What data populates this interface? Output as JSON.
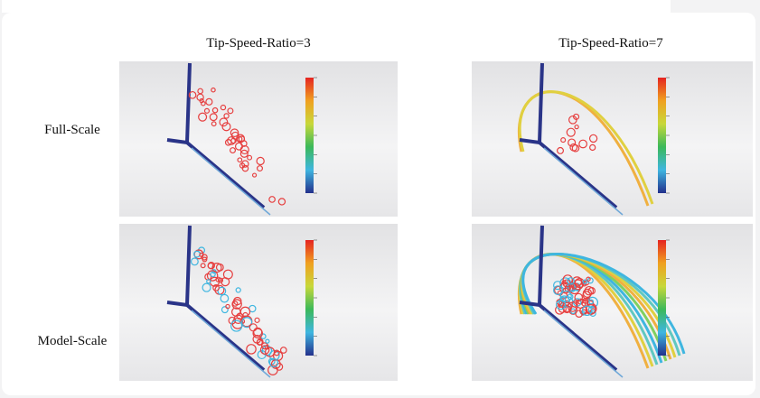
{
  "figure": {
    "columns": [
      "Tip-Speed-Ratio=3",
      "Tip-Speed-Ratio=7"
    ],
    "rows": [
      "Full-Scale",
      "Model-Scale"
    ]
  }
}
